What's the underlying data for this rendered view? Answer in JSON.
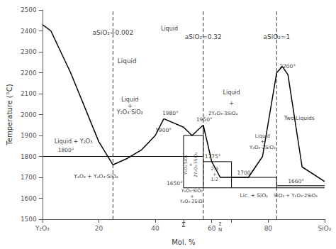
{
  "chart_data": {
    "type": "line",
    "xlabel": "Mol. %",
    "ylabel": "Temperature (°C)",
    "xlim": [
      0,
      100
    ],
    "ylim": [
      1500,
      2500
    ],
    "xticks": [
      {
        "value": 0,
        "label": "Y₂O₃"
      },
      20,
      40,
      {
        "value": 50,
        "label": null
      },
      60,
      {
        "value": 67,
        "label": null
      },
      80,
      {
        "value": 100,
        "label": "SiO₂"
      }
    ],
    "yticks": [
      1500,
      1600,
      1700,
      1800,
      1900,
      2000,
      2100,
      2200,
      2300,
      2400,
      2500
    ],
    "grid": false,
    "color": "#000000",
    "series": [
      {
        "x": [
          0,
          3,
          10,
          20,
          25
        ],
        "values": [
          2430,
          2400,
          2200,
          1870,
          1760
        ]
      },
      {
        "x": [
          25,
          30,
          35,
          40,
          43
        ],
        "values": [
          1760,
          1790,
          1830,
          1900,
          1980
        ]
      },
      {
        "x": [
          43,
          50,
          53,
          57
        ],
        "values": [
          1980,
          1940,
          1900,
          1950
        ]
      },
      {
        "x": [
          57,
          60,
          63,
          67
        ],
        "values": [
          1950,
          1775,
          1700,
          1700
        ]
      },
      {
        "x": [
          67,
          70,
          73,
          78,
          83,
          85,
          87,
          92,
          100
        ],
        "values": [
          1700,
          1700,
          1700,
          1800,
          2200,
          2230,
          2190,
          1750,
          1680
        ]
      }
    ],
    "horizontal_lines": [
      {
        "y": 1800,
        "x1": 0,
        "x2": 57
      },
      {
        "y": 1900,
        "x1": 50,
        "x2": 57
      },
      {
        "y": 1650,
        "x1": 50,
        "x2": 100
      },
      {
        "y": 1775,
        "x1": 57,
        "x2": 67
      },
      {
        "y": 1700,
        "x1": 67,
        "x2": 83
      },
      {
        "y": 1660,
        "x1": 83,
        "x2": 100
      }
    ],
    "vertical_lines": [
      {
        "x": 50,
        "y1": 1650,
        "y2": 1900
      },
      {
        "x": 57,
        "y1": 1650,
        "y2": 1950
      },
      {
        "x": 67,
        "y1": 1650,
        "y2": 1775
      },
      {
        "x": 83,
        "y1": 1650,
        "y2": 1700
      }
    ],
    "dashed_lines_x": [
      25,
      57,
      83
    ],
    "annotations": [
      {
        "text": "aSiO₂=0.002",
        "x": 25,
        "y": 2390
      },
      {
        "text": "Liquid",
        "x": 45,
        "y": 2395
      },
      {
        "text": "aSiO₂=0.32",
        "x": 57,
        "y": 2370
      },
      {
        "text": "aSiO₂=1",
        "x": 83,
        "y": 2370
      },
      {
        "text": "Liquid",
        "x": 30,
        "y": 2240
      },
      {
        "text": "Liquid + Y₂O₃",
        "x": 11,
        "y": 1870
      },
      {
        "text": "1800°",
        "x": 5.5,
        "y": 1815
      },
      {
        "text": "Y₂O₃ + Y₂O₃·SiO₂",
        "x": 19,
        "y": 1690
      },
      {
        "text": "Liquid\n+\nY₂O₃·SiO₂",
        "x": 31,
        "y": 2040
      },
      {
        "text": "1900°",
        "x": 40,
        "y": 1912
      },
      {
        "text": "1980°",
        "x": 42.5,
        "y": 1993
      },
      {
        "text": "1950°",
        "x": 54.5,
        "y": 1963
      },
      {
        "text": "1775°",
        "x": 57.5,
        "y": 1787
      },
      {
        "text": "1650°",
        "x": 44,
        "y": 1658
      },
      {
        "text": "1700°",
        "x": 69,
        "y": 1708
      },
      {
        "text": "1660°",
        "x": 87,
        "y": 1668
      },
      {
        "text": "2200°",
        "x": 84,
        "y": 2215
      },
      {
        "text": "Liquid",
        "x": 67,
        "y": 2090
      },
      {
        "text": "+",
        "x": 67,
        "y": 2040
      },
      {
        "text": "2Y₂O₃·3SiO₂",
        "x": 64,
        "y": 1990
      },
      {
        "text": "Two Liquids",
        "x": 91,
        "y": 1970
      },
      {
        "text": "Liquid\n+\nY₂O₃·2SiO₂",
        "x": 78,
        "y": 1830
      },
      {
        "text": "Y₂O₃·SiO₂\n+\n2Y₂O₃·3SiO₂",
        "x": 52.5,
        "y": 1760
      },
      {
        "text": "2:3\n+\n1:2",
        "x": 61,
        "y": 1715
      },
      {
        "text": "Y₂O₃·SiO₂\n+\nY₂O₃·2SiO₂",
        "x": 53,
        "y": 1610
      },
      {
        "text": "Lic. + SiO₂",
        "x": 70,
        "y": 1600
      },
      {
        "text": "SiO₂ + Y₂O₃·2SiO₂",
        "x": 82,
        "y": 1600
      },
      {
        "text": "Σ",
        "x": 50,
        "y": 1490
      },
      {
        "text": "Σ\nN",
        "x": 63,
        "y": 1490
      }
    ]
  }
}
